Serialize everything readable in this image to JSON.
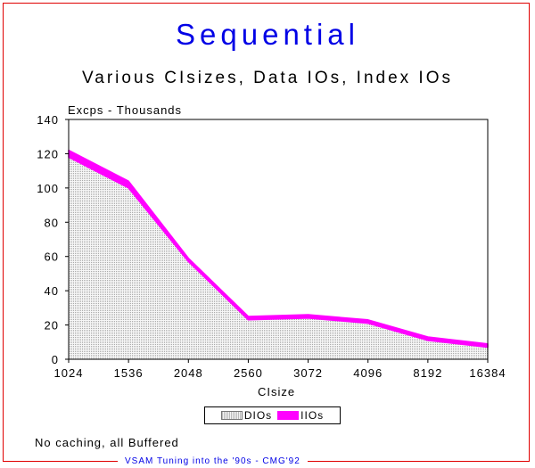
{
  "title": "Sequential",
  "subtitle": "Various CIsizes, Data IOs, Index IOs",
  "note": "No caching, all Buffered",
  "footer": "VSAM Tuning into the '90s - CMG'92",
  "chart_data": {
    "type": "area",
    "title": "Sequential",
    "subtitle": "Various CIsizes, Data IOs, Index IOs",
    "xlabel": "CIsize",
    "ylabel": "Excps - Thousands",
    "categories": [
      "1024",
      "1536",
      "2048",
      "2560",
      "3072",
      "4096",
      "8192",
      "16384"
    ],
    "yticks": [
      0,
      20,
      40,
      60,
      80,
      100,
      120,
      140
    ],
    "ylim": [
      0,
      140
    ],
    "stacked": true,
    "grid": false,
    "legend_position": "bottom",
    "series": [
      {
        "name": "DIOs",
        "values": [
          118,
          100,
          57,
          23,
          24,
          21,
          11,
          7
        ],
        "color": "#bbbbbb",
        "pattern": "dotted"
      },
      {
        "name": "IIOs",
        "values": [
          4,
          4,
          2,
          2,
          2,
          2,
          2,
          2
        ],
        "color": "#ff00ff"
      }
    ]
  }
}
